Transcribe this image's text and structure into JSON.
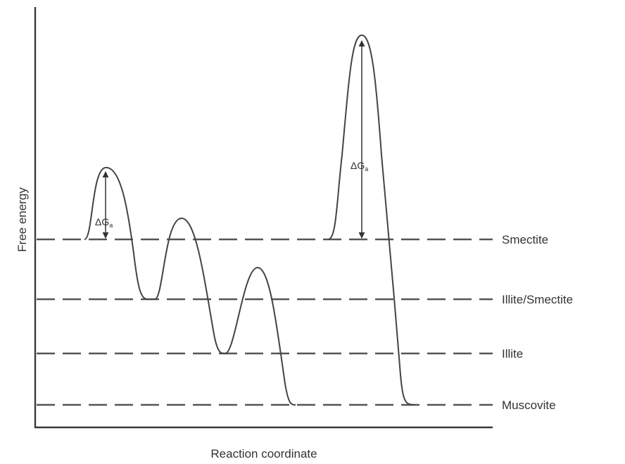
{
  "axes": {
    "y_title": "Free energy",
    "x_title": "Reaction coordinate"
  },
  "levels": [
    {
      "key": "smectite",
      "label": "Smectite"
    },
    {
      "key": "illite_smectite",
      "label": "Illite/Smectite"
    },
    {
      "key": "illite",
      "label": "Illite"
    },
    {
      "key": "muscovite",
      "label": "Muscovite"
    }
  ],
  "barriers": [
    {
      "symbol": "ΔG",
      "subscript": "a"
    },
    {
      "symbol": "ΔG",
      "subscript": "a"
    }
  ]
}
